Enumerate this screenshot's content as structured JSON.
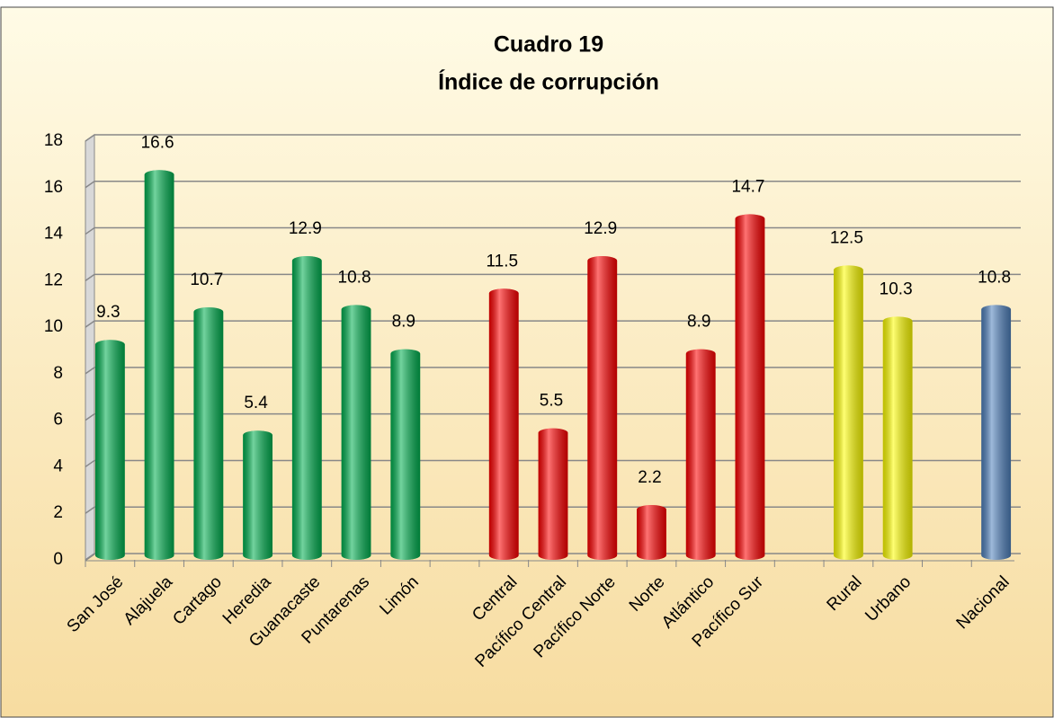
{
  "chart_data": {
    "type": "bar",
    "title": [
      "Cuadro 19",
      "Índice de corrupción"
    ],
    "categories": [
      "San José",
      "Alajuela",
      "Cartago",
      "Heredia",
      "Guanacaste",
      "Puntarenas",
      "Limón",
      null,
      "Central",
      "Pacífico Central",
      "Pacífico Norte",
      "Norte",
      "Atlántico",
      "Pacífico Sur",
      null,
      "Rural",
      "Urbano",
      null,
      "Nacional"
    ],
    "values": [
      9.3,
      16.6,
      10.7,
      5.4,
      12.9,
      10.8,
      8.9,
      null,
      11.5,
      5.5,
      12.9,
      2.2,
      8.9,
      14.7,
      null,
      12.5,
      10.3,
      null,
      10.8
    ],
    "colors": [
      "#00b050",
      "#00b050",
      "#00b050",
      "#00b050",
      "#00b050",
      "#00b050",
      "#00b050",
      null,
      "#ff0000",
      "#ff0000",
      "#ff0000",
      "#ff0000",
      "#ff0000",
      "#ff0000",
      null,
      "#ffff00",
      "#ffff00",
      null,
      "#4f81bd"
    ],
    "ylim": [
      0,
      18
    ],
    "yticks": [
      0,
      2,
      4,
      6,
      8,
      10,
      12,
      14,
      16,
      18
    ],
    "grid": true
  }
}
